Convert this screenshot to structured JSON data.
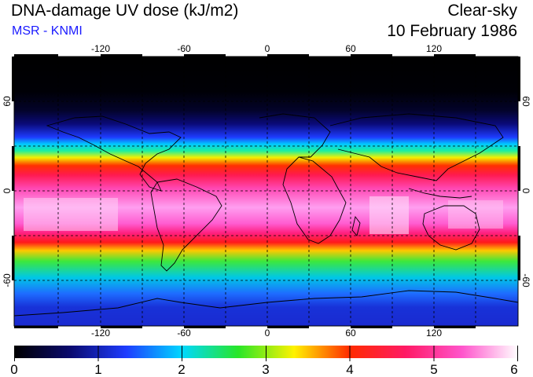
{
  "header": {
    "title": "DNA-damage UV dose (kJ/m2)",
    "subtitle": "MSR - KNMI",
    "condition": "Clear-sky",
    "date": "10 February 1986"
  },
  "map": {
    "longitude_labels": [
      "-120",
      "-60",
      "0",
      "60",
      "120"
    ],
    "latitude_labels_left": [
      "60",
      "0",
      "-60"
    ],
    "latitude_labels_right": [
      "60",
      "0",
      "-60"
    ]
  },
  "colorbar": {
    "labels": [
      "0",
      "1",
      "2",
      "3",
      "4",
      "5",
      "6"
    ],
    "min": 0,
    "max": 6,
    "colors": [
      "#000000",
      "#0a0a6e",
      "#1e3cff",
      "#00d8ff",
      "#28e628",
      "#fff200",
      "#ff2a00",
      "#ff1a66",
      "#ff55cc",
      "#ffffff"
    ]
  }
}
